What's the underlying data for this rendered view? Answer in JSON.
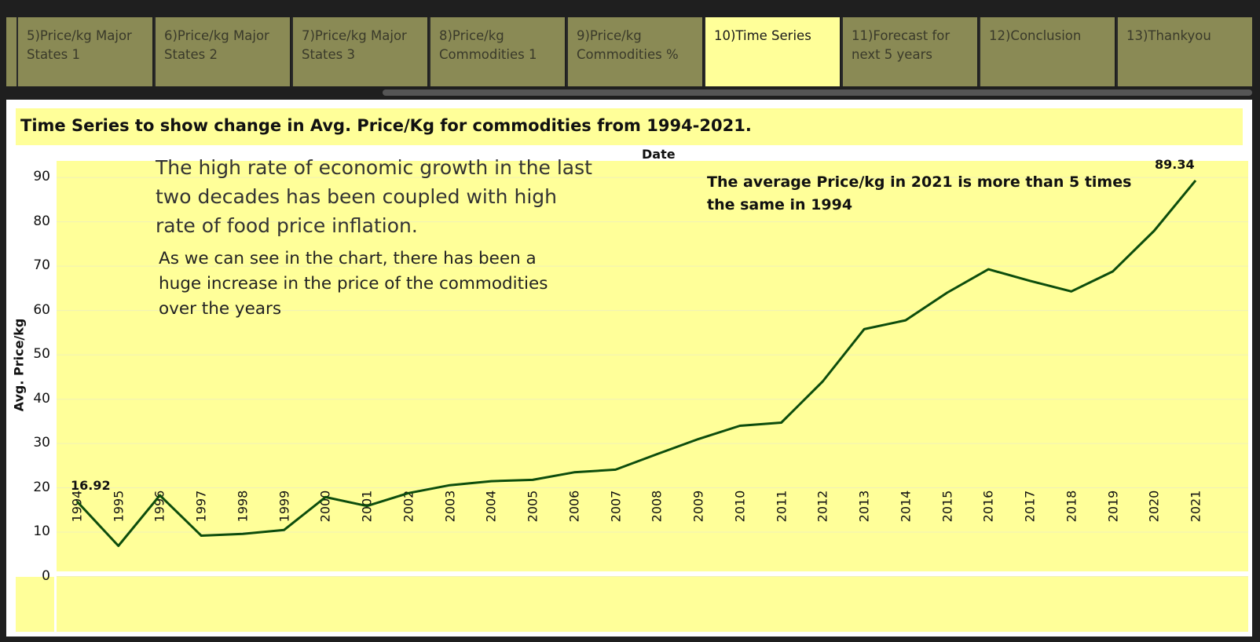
{
  "tabs": [
    {
      "label": "5)Price/kg Major States 1"
    },
    {
      "label": "6)Price/kg Major States 2"
    },
    {
      "label": "7)Price/kg Major States 3"
    },
    {
      "label": "8)Price/kg Commodities 1"
    },
    {
      "label": "9)Price/kg Commodities %"
    },
    {
      "label": "10)Time Series",
      "active": true
    },
    {
      "label": "11)Forecast for next 5 years"
    },
    {
      "label": "12)Conclusion"
    },
    {
      "label": "13)Thankyou"
    }
  ],
  "annotations": {
    "headline": "The high rate of economic growth in the last two decades has been coupled with high rate of food price inflation.",
    "body": "As we can see in the chart, there has been a huge increase in the price of the commodities over the years",
    "callout": "The average Price/kg in 2021 is more than 5 times the same in 1994"
  },
  "colors": {
    "plot_background": "#ffff99",
    "line": "#0d4d0d",
    "tab_inactive": "#8a8a55",
    "tab_active": "#ffff99"
  },
  "chart_data": {
    "type": "line",
    "title": "Time Series to show change in Avg. Price/Kg for commodities from 1994-2021.",
    "xlabel": "Date",
    "ylabel": "Avg. Price/kg",
    "x": [
      1994,
      1995,
      1996,
      1997,
      1998,
      1999,
      2000,
      2001,
      2002,
      2003,
      2004,
      2005,
      2006,
      2007,
      2008,
      2009,
      2010,
      2011,
      2012,
      2013,
      2014,
      2015,
      2016,
      2017,
      2018,
      2019,
      2020,
      2021
    ],
    "series": [
      {
        "values": [
          16.92,
          6.9,
          18.3,
          9.2,
          9.6,
          10.5,
          17.9,
          15.9,
          18.8,
          20.6,
          21.5,
          21.8,
          23.5,
          24.1,
          27.6,
          31.0,
          34.0,
          34.7,
          44.0,
          55.8,
          57.8,
          64.0,
          69.3,
          66.7,
          64.3,
          68.8,
          78.0,
          89.34
        ]
      }
    ],
    "yticks": [
      0,
      10,
      20,
      30,
      40,
      50,
      60,
      70,
      80,
      90
    ],
    "ylim": [
      -2,
      92
    ],
    "data_labels": [
      {
        "x": 1994,
        "text": "16.92"
      },
      {
        "x": 2021,
        "text": "89.34"
      }
    ],
    "grid": true
  }
}
